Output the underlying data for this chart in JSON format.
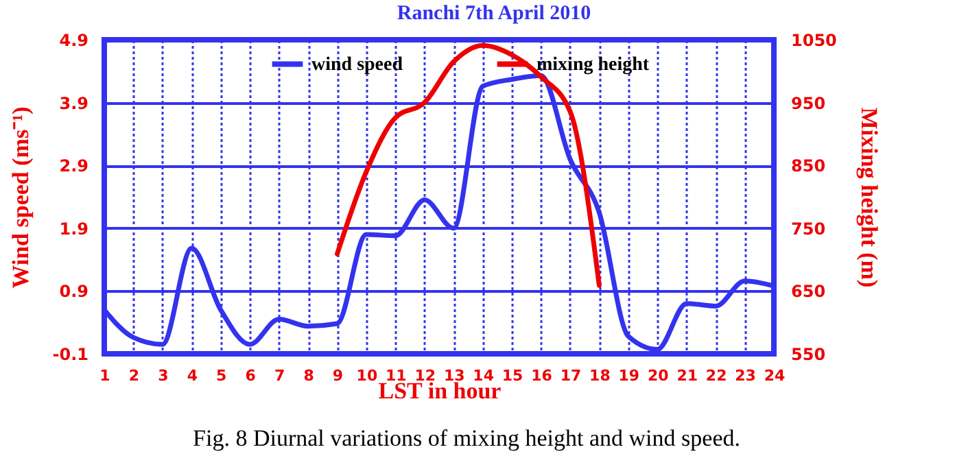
{
  "chart_data": {
    "type": "line",
    "title": "Ranchi 7th April 2010",
    "xlabel": "LST in hour",
    "ylabel": "Wind speed (ms⁻¹)",
    "y2label": "Mixing height (m)",
    "annotations": [
      "Fig. 8 Diurnal variations of mixing height and wind speed."
    ],
    "x": [
      1,
      2,
      3,
      4,
      5,
      6,
      7,
      8,
      9,
      10,
      11,
      12,
      13,
      14,
      15,
      16,
      17,
      18,
      19,
      20,
      21,
      22,
      23,
      24
    ],
    "series": [
      {
        "name": "wind speed",
        "color": "#3333ee",
        "values": [
          0.6,
          0.16,
          0.05,
          1.58,
          0.6,
          0.05,
          0.45,
          0.34,
          0.38,
          1.8,
          1.78,
          2.35,
          1.9,
          4.16,
          4.27,
          4.33,
          3.0,
          2.15,
          0.18,
          -0.03,
          0.7,
          0.66,
          1.06,
          0.98
        ]
      },
      {
        "name": "mixing height",
        "color": "#ee0000",
        "axis": "y2",
        "x": [
          9,
          10,
          11,
          12,
          13,
          14,
          15,
          16,
          17,
          18
        ],
        "values": [
          709,
          840,
          926,
          950,
          1015,
          1041,
          1026,
          991,
          936,
          659
        ]
      }
    ],
    "xlim": [
      1,
      24
    ],
    "xticks": [
      1,
      2,
      3,
      4,
      5,
      6,
      7,
      8,
      9,
      10,
      11,
      12,
      13,
      14,
      15,
      16,
      17,
      18,
      19,
      20,
      21,
      22,
      23,
      24
    ],
    "ylim": [
      -0.1,
      4.9
    ],
    "yticks": [
      -0.1,
      0.9,
      1.9,
      2.9,
      3.9,
      4.9
    ],
    "y2lim": [
      550,
      1050
    ],
    "y2ticks": [
      550,
      650,
      750,
      850,
      950,
      1050
    ],
    "grid": true,
    "legend": "top",
    "line_style": "solid",
    "marker": "none"
  }
}
